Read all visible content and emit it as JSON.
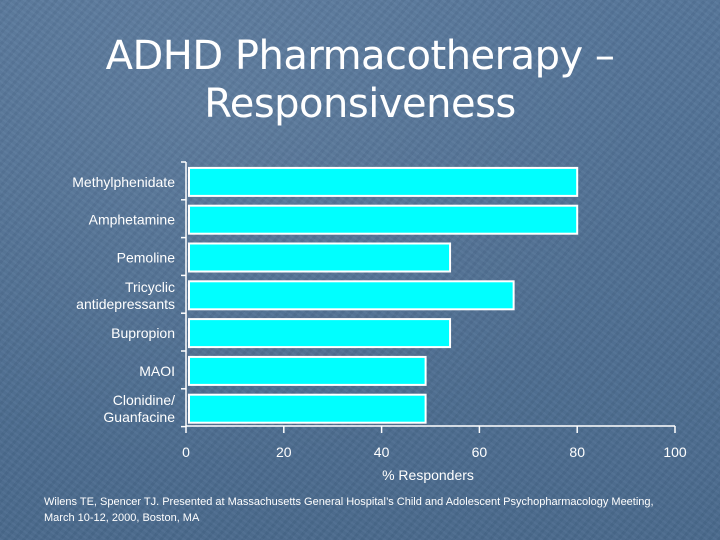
{
  "slide": {
    "title_line1": "ADHD Pharmacotherapy –",
    "title_line2": "Responsiveness",
    "citation": "Wilens TE, Spencer TJ. Presented at Massachusetts General Hospital’s Child and Adolescent Psychopharmacology Meeting, March 10-12, 2000, Boston, MA"
  },
  "colors": {
    "bar_fill": "#00ffff",
    "bar_stroke": "#ffffff",
    "axis": "#ffffff",
    "text": "#ffffff"
  },
  "chart_data": {
    "type": "bar",
    "orientation": "horizontal",
    "categories": [
      [
        "Methylphenidate"
      ],
      [
        "Amphetamine"
      ],
      [
        "Pemoline"
      ],
      [
        "Tricyclic",
        "antidepressants"
      ],
      [
        "Bupropion"
      ],
      [
        "MAOI"
      ],
      [
        "Clonidine/",
        "Guanfacine"
      ]
    ],
    "values": [
      80,
      80,
      54,
      67,
      54,
      49,
      49
    ],
    "xlabel": "% Responders",
    "xlim": [
      0,
      100
    ],
    "xticks": [
      0,
      20,
      40,
      60,
      80,
      100
    ],
    "grid": false
  }
}
